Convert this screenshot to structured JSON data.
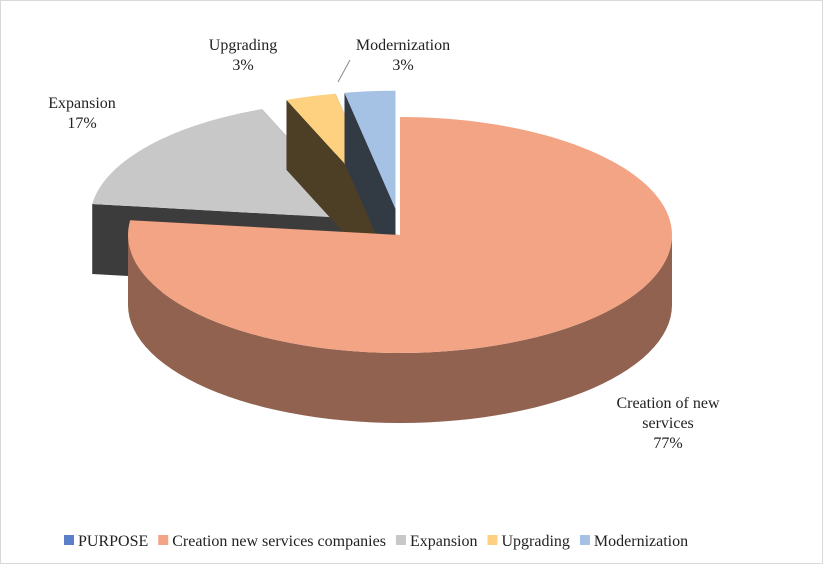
{
  "chart_data": {
    "type": "pie3d",
    "categories": [
      "PURPOSE",
      "Creation new services companies",
      "Expansion",
      "Upgrading",
      "Modernization"
    ],
    "values": [
      null,
      77,
      17,
      3,
      3
    ],
    "value_labels": [
      null,
      "77%",
      "17%",
      "3%",
      "3%"
    ],
    "slice_labels": [
      null,
      "Creation of new services",
      "Expansion",
      "Upgrading",
      "Modernization"
    ],
    "colors": [
      "#5b7fc9",
      "#f2a484",
      "#c8c8c8",
      "#fdd17f",
      "#a5c1e4"
    ],
    "legend": "bottom"
  }
}
